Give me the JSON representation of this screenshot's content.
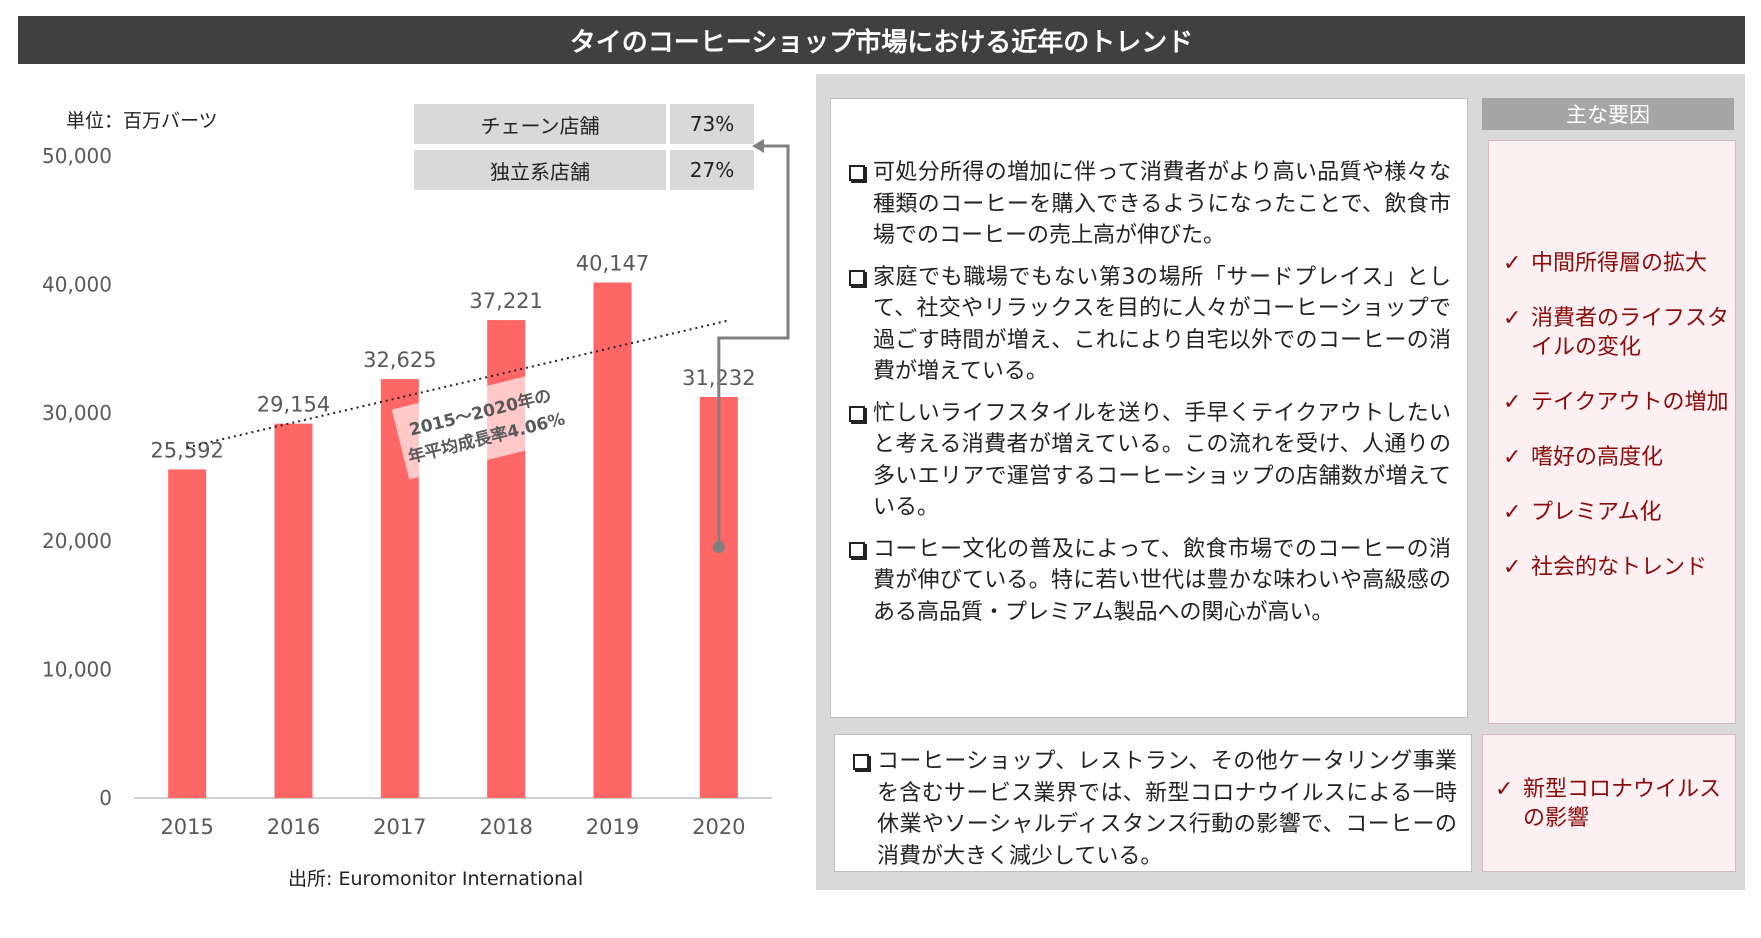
{
  "title": "タイのコーヒーショップ市場における近年のトレンド",
  "unit_label": "単位：百万バーツ",
  "share_table": [
    {
      "label": "チェーン店舗",
      "value": "73%"
    },
    {
      "label": "独立系店舗",
      "value": "27%"
    }
  ],
  "chart_data": {
    "type": "bar",
    "categories": [
      "2015",
      "2016",
      "2017",
      "2018",
      "2019",
      "2020"
    ],
    "values": [
      25592,
      29154,
      32625,
      37221,
      40147,
      31232
    ],
    "value_labels": [
      "25,592",
      "29,154",
      "32,625",
      "37,221",
      "40,147",
      "31,232"
    ],
    "ylim": [
      0,
      50000
    ],
    "yticks": [
      0,
      10000,
      20000,
      30000,
      40000,
      50000
    ],
    "ytick_labels": [
      "0",
      "10,000",
      "20,000",
      "30,000",
      "40,000",
      "50,000"
    ],
    "bar_color": "#ff6666",
    "trendline": {
      "style": "dotted",
      "x_from": "2015",
      "x_to": "2020",
      "y_from": 27300,
      "y_to": 37200
    },
    "annotation": {
      "line1": "2015～2020年の",
      "line2": "年平均成長率4.06%"
    }
  },
  "source": "出所: Euromonitor International",
  "bullets_main": [
    "可処分所得の増加に伴って消費者がより高い品質や様々な種類のコーヒーを購入できるようになったことで、飲食市場でのコーヒーの売上高が伸びた。",
    "家庭でも職場でもない第3の場所「サードプレイス」として、社交やリラックスを目的に人々がコーヒーショップで過ごす時間が増え、これにより自宅以外でのコーヒーの消費が増えている。",
    "忙しいライフスタイルを送り、手早くテイクアウトしたいと考える消費者が増えている。この流れを受け、人通りの多いエリアで運営するコーヒーショップの店舗数が増えている。",
    "コーヒー文化の普及によって、飲食市場でのコーヒーの消費が伸びている。特に若い世代は豊かな味わいや高級感のある高品質・プレミアム製品への関心が高い。"
  ],
  "bullet_covid": "コーヒーショップ、レストラン、その他ケータリング事業を含むサービス業界では、新型コロナウイルスによる一時休業やソーシャルディスタンス行動の影響で、コーヒーの消費が大きく減少している。",
  "factors_header": "主な要因",
  "check_mark": "✓",
  "factors": [
    "中間所得層の拡大",
    "消費者のライフスタイルの変化",
    "テイクアウトの増加",
    "嗜好の高度化",
    "プレミアム化",
    "社会的なトレンド"
  ],
  "factor_covid": "新型コロナウイルスの影響"
}
